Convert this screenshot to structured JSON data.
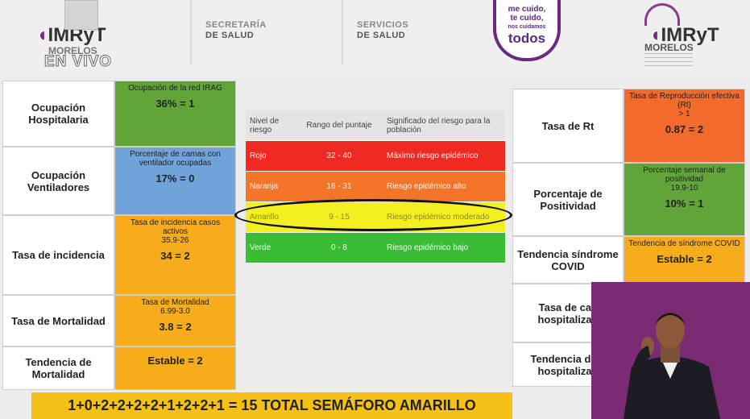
{
  "header": {
    "imryt_left": "IMRyT",
    "morelos_left": "MORELOS",
    "en_vivo": "EN VIVO",
    "secretaria_line1": "SECRETARÍA",
    "secretaria_line2": "DE SALUD",
    "servicios_line1": "SERVICIOS",
    "servicios_line2": "DE SALUD",
    "slogan_line1": "me cuido,",
    "slogan_line2": "te cuido,",
    "slogan_line3": "nos cuidamos",
    "slogan_line4": "todos",
    "imryt_right": "IMRyT",
    "morelos_right": "MORELOS"
  },
  "left_table": [
    {
      "label": "Ocupación Hospitalaria",
      "desc": "Ocupación de la red IRAG",
      "range": "",
      "score": "36% = 1",
      "color": "#61a53a"
    },
    {
      "label": "Ocupación Ventiladores",
      "desc": "Porcentaje de camas con ventilador ocupadas",
      "range": "",
      "score": "17%   = 0",
      "color": "#6fa3d9"
    },
    {
      "label": "Tasa de incidencia",
      "desc": "Tasa de incidencia casos activos",
      "range": "35.9-26",
      "score": "34 = 2",
      "color": "#f6ac1b"
    },
    {
      "label": "Tasa de Mortalidad",
      "desc": "Tasa de Mortalidad",
      "range": "6.99-3.0",
      "score": "3.8  = 2",
      "color": "#f6ac1b"
    },
    {
      "label": "Tendencia de Mortalidad",
      "desc": "",
      "range": "",
      "score": "Estable = 2",
      "color": "#f6ac1b"
    }
  ],
  "semaforo": {
    "headers": [
      "Nivel de riesgo",
      "Rango del puntaje",
      "Significado del riesgo para la población"
    ],
    "rows": [
      {
        "level": "Rojo",
        "range": "32 - 40",
        "meaning": "Máximo riesgo epidémico"
      },
      {
        "level": "Naranja",
        "range": "16 - 31",
        "meaning": "Riesgo epidémico alto"
      },
      {
        "level": "Amarillo",
        "range": "9 - 15",
        "meaning": "Riesgo epidémico moderado"
      },
      {
        "level": "Verde",
        "range": "0 - 8",
        "meaning": "Riesgo epidémico bajo"
      }
    ]
  },
  "right_table": [
    {
      "label": "Tasa de Rt",
      "desc": "Tasa de Reproducción efectiva (Rt)",
      "range": "> 1",
      "score": "0.87 = 2",
      "color": "#f36b2c"
    },
    {
      "label": "Porcentaje de Positividad",
      "desc": "Porcentaje semanal de positividad",
      "range": "19.9-10",
      "score": "10%   = 1",
      "color": "#61a53a"
    },
    {
      "label": "Tendencia síndrome COVID",
      "desc": "Tendencia de síndrome COVID",
      "range": "",
      "score": "Estable = 2",
      "color": "#f6ac1b"
    },
    {
      "label": "Tasa de cas hospitalizad",
      "desc": "",
      "range": "",
      "score": "",
      "color": "#ffffff"
    },
    {
      "label": "Tendencia de c hospitalizad",
      "desc": "",
      "range": "",
      "score": "",
      "color": "#ffffff"
    }
  ],
  "total_banner": "1+0+2+2+2+2+1+2+2+1 = 15 TOTAL SEMÁFORO AMARILLO"
}
